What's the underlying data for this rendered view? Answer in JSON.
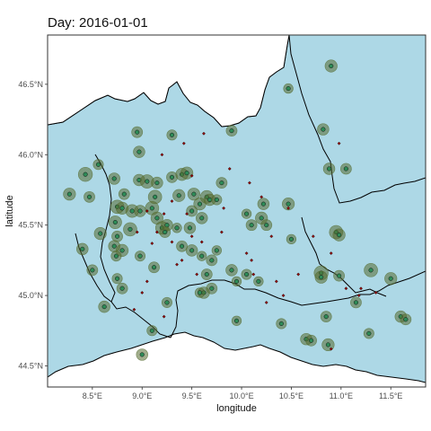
{
  "title": "Day: 2016-01-01",
  "colors": {
    "land": "#ffffff",
    "region_fill": "#add8e6",
    "border": "#000000",
    "station_outer": "#556b2f",
    "station_inner": "#2e8b57",
    "sensor_point": "#8b0000",
    "grid": "#ebebeb"
  },
  "axes": {
    "xlabel": "longitude",
    "ylabel": "latitude",
    "xlim": [
      8.05,
      11.85
    ],
    "ylim": [
      44.35,
      46.85
    ],
    "xticks": [
      8.5,
      9.0,
      9.5,
      10.0,
      10.5,
      11.0,
      11.5
    ],
    "yticks": [
      44.5,
      45.0,
      45.5,
      46.0,
      46.5
    ],
    "xtick_labels": [
      "8.5°E",
      "9.0°E",
      "9.5°E",
      "10.0°E",
      "10.5°E",
      "11.0°E",
      "11.5°E"
    ],
    "ytick_labels": [
      "44.5°N",
      "45.0°N",
      "45.5°N",
      "46.0°N",
      "46.5°N"
    ]
  },
  "chart_data": {
    "type": "scatter",
    "title": "Day: 2016-01-01",
    "xlabel": "longitude",
    "ylabel": "latitude",
    "xlim": [
      8.05,
      11.85
    ],
    "ylim": [
      44.35,
      46.85
    ],
    "grid": true,
    "stations": [
      [
        10.9,
        46.63,
        1.0
      ],
      [
        8.95,
        46.16,
        0.8
      ],
      [
        9.9,
        46.17,
        0.8
      ],
      [
        10.47,
        46.47,
        0.6
      ],
      [
        8.97,
        46.02,
        0.9
      ],
      [
        9.3,
        46.14,
        0.7
      ],
      [
        8.56,
        45.93,
        0.7
      ],
      [
        8.43,
        45.86,
        1.3
      ],
      [
        8.72,
        45.83,
        0.9
      ],
      [
        8.97,
        45.82,
        0.9
      ],
      [
        9.05,
        45.81,
        1.2
      ],
      [
        9.15,
        45.8,
        0.9
      ],
      [
        9.4,
        45.86,
        1.0
      ],
      [
        9.45,
        45.87,
        1.0
      ],
      [
        9.3,
        45.84,
        0.8
      ],
      [
        9.37,
        45.71,
        1.0
      ],
      [
        9.13,
        45.7,
        1.2
      ],
      [
        8.27,
        45.72,
        1.0
      ],
      [
        8.47,
        45.7,
        0.8
      ],
      [
        8.82,
        45.72,
        0.8
      ],
      [
        8.75,
        45.63,
        1.2
      ],
      [
        8.8,
        45.62,
        1.0
      ],
      [
        8.9,
        45.6,
        1.1
      ],
      [
        8.98,
        45.6,
        0.9
      ],
      [
        9.1,
        45.62,
        1.2
      ],
      [
        9.15,
        45.55,
        1.0
      ],
      [
        8.73,
        45.52,
        1.1
      ],
      [
        8.88,
        45.47,
        1.2
      ],
      [
        9.2,
        45.48,
        1.1
      ],
      [
        9.25,
        45.5,
        0.9
      ],
      [
        9.23,
        45.45,
        0.8
      ],
      [
        9.52,
        45.72,
        1.0
      ],
      [
        9.58,
        45.65,
        1.0
      ],
      [
        9.65,
        45.7,
        1.1
      ],
      [
        9.68,
        45.68,
        0.9
      ],
      [
        9.5,
        45.6,
        0.8
      ],
      [
        9.6,
        45.55,
        0.9
      ],
      [
        9.48,
        45.48,
        0.9
      ],
      [
        10.22,
        45.65,
        0.9
      ],
      [
        10.47,
        45.65,
        1.0
      ],
      [
        10.2,
        45.55,
        1.0
      ],
      [
        10.25,
        45.5,
        0.8
      ],
      [
        10.1,
        45.5,
        0.8
      ],
      [
        8.58,
        45.44,
        1.0
      ],
      [
        8.75,
        45.42,
        0.8
      ],
      [
        8.4,
        45.33,
        0.9
      ],
      [
        8.72,
        45.35,
        0.9
      ],
      [
        9.4,
        45.35,
        0.8
      ],
      [
        9.5,
        45.32,
        0.9
      ],
      [
        8.74,
        45.28,
        0.7
      ],
      [
        8.8,
        45.32,
        1.0
      ],
      [
        9.12,
        45.2,
        0.8
      ],
      [
        9.7,
        45.25,
        0.8
      ],
      [
        9.6,
        45.28,
        0.6
      ],
      [
        9.75,
        45.32,
        0.6
      ],
      [
        8.5,
        45.18,
        0.8
      ],
      [
        9.65,
        45.15,
        0.8
      ],
      [
        9.7,
        45.05,
        0.8
      ],
      [
        9.62,
        45.02,
        0.9
      ],
      [
        9.9,
        45.18,
        0.9
      ],
      [
        10.05,
        45.15,
        0.7
      ],
      [
        9.95,
        45.1,
        0.6
      ],
      [
        10.17,
        45.1,
        0.6
      ],
      [
        8.75,
        45.12,
        0.7
      ],
      [
        8.8,
        45.05,
        0.8
      ],
      [
        8.62,
        44.92,
        0.9
      ],
      [
        9.25,
        44.95,
        0.7
      ],
      [
        9.58,
        45.02,
        0.6
      ],
      [
        10.8,
        45.16,
        1.3
      ],
      [
        10.8,
        45.13,
        1.0
      ],
      [
        10.98,
        45.14,
        0.8
      ],
      [
        11.3,
        45.18,
        1.2
      ],
      [
        11.5,
        45.12,
        1.0
      ],
      [
        10.95,
        45.45,
        1.2
      ],
      [
        10.98,
        45.43,
        1.0
      ],
      [
        10.82,
        46.18,
        0.9
      ],
      [
        10.88,
        45.9,
        0.9
      ],
      [
        11.05,
        45.9,
        0.8
      ],
      [
        10.87,
        44.65,
        1.0
      ],
      [
        10.65,
        44.69,
        0.9
      ],
      [
        10.7,
        44.68,
        0.8
      ],
      [
        10.85,
        44.85,
        0.8
      ],
      [
        10.4,
        44.8,
        0.7
      ],
      [
        9.95,
        44.82,
        0.6
      ],
      [
        9.0,
        44.58,
        0.9
      ],
      [
        9.1,
        44.75,
        0.7
      ],
      [
        11.28,
        44.73,
        0.7
      ],
      [
        11.6,
        44.85,
        0.9
      ],
      [
        11.65,
        44.83,
        0.8
      ],
      [
        9.8,
        45.8,
        0.8
      ],
      [
        10.05,
        45.58,
        0.6
      ],
      [
        10.5,
        45.4,
        0.6
      ],
      [
        11.15,
        44.95,
        0.8
      ],
      [
        9.75,
        45.68,
        0.7
      ],
      [
        8.98,
        45.28,
        0.7
      ],
      [
        9.35,
        45.48,
        0.6
      ]
    ],
    "sensor_points": [
      [
        9.05,
        45.6
      ],
      [
        9.22,
        45.58
      ],
      [
        9.15,
        45.45
      ],
      [
        9.4,
        45.25
      ],
      [
        9.55,
        45.15
      ],
      [
        9.3,
        45.38
      ],
      [
        9.5,
        45.42
      ],
      [
        9.45,
        45.58
      ],
      [
        9.8,
        45.45
      ],
      [
        10.1,
        45.25
      ],
      [
        10.35,
        45.1
      ],
      [
        10.2,
        45.7
      ],
      [
        10.3,
        45.42
      ],
      [
        10.42,
        45.0
      ],
      [
        10.9,
        45.3
      ],
      [
        11.05,
        45.05
      ],
      [
        11.18,
        45.0
      ],
      [
        11.2,
        45.05
      ],
      [
        11.35,
        45.02
      ],
      [
        10.05,
        45.3
      ],
      [
        10.25,
        44.95
      ],
      [
        10.9,
        44.62
      ],
      [
        10.98,
        46.08
      ],
      [
        10.47,
        45.62
      ],
      [
        9.42,
        46.08
      ],
      [
        9.62,
        46.15
      ],
      [
        9.88,
        45.9
      ],
      [
        9.1,
        45.37
      ],
      [
        8.95,
        45.45
      ],
      [
        9.3,
        45.67
      ],
      [
        9.35,
        45.22
      ],
      [
        9.6,
        45.38
      ],
      [
        9.0,
        45.02
      ],
      [
        8.92,
        44.9
      ],
      [
        9.22,
        44.85
      ],
      [
        9.05,
        45.1
      ],
      [
        9.5,
        45.85
      ],
      [
        9.2,
        46.0
      ],
      [
        10.08,
        45.8
      ],
      [
        9.82,
        45.62
      ],
      [
        10.57,
        45.15
      ],
      [
        10.72,
        45.42
      ],
      [
        10.12,
        45.15
      ]
    ]
  }
}
